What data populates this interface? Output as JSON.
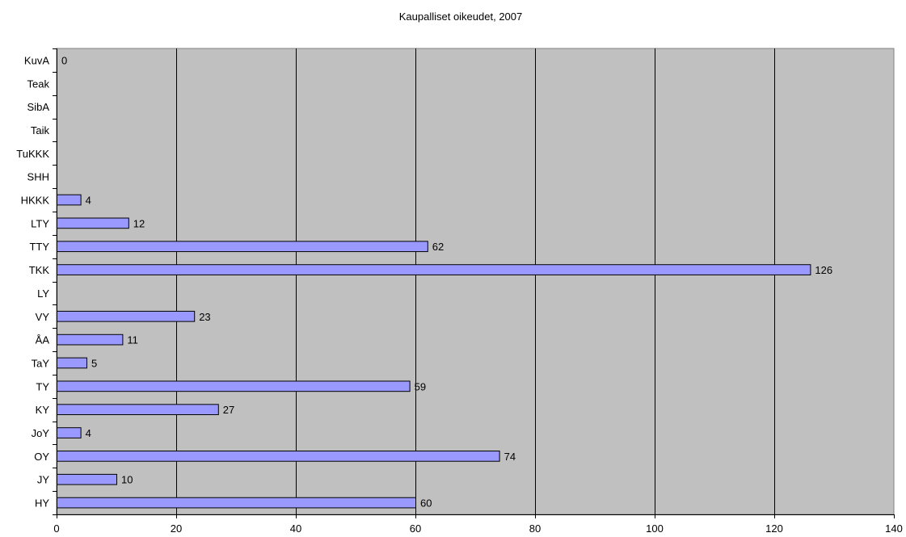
{
  "chart_data": {
    "type": "bar",
    "orientation": "horizontal",
    "title": "Kaupalliset oikeudet, 2007",
    "xlabel": "",
    "ylabel": "",
    "xlim": [
      0,
      140
    ],
    "x_ticks": [
      0,
      20,
      40,
      60,
      80,
      100,
      120,
      140
    ],
    "grid": "vertical",
    "plot_background": "#c0c0c0",
    "bar_color": "#9999ff",
    "categories": [
      "HY",
      "JY",
      "OY",
      "JoY",
      "KY",
      "TY",
      "TaY",
      "ÅA",
      "VY",
      "LY",
      "TKK",
      "TTY",
      "LTY",
      "HKKK",
      "SHH",
      "TuKKK",
      "Taik",
      "SibA",
      "Teak",
      "KuvA"
    ],
    "values": [
      60,
      10,
      74,
      4,
      27,
      59,
      5,
      11,
      23,
      null,
      126,
      62,
      12,
      4,
      null,
      null,
      null,
      null,
      null,
      0
    ],
    "data_labels": [
      "60",
      "10",
      "74",
      "4",
      "27",
      "59",
      "5",
      "11",
      "23",
      "",
      "126",
      "62",
      "12",
      "4",
      "",
      "",
      "",
      "",
      "",
      "0"
    ]
  }
}
